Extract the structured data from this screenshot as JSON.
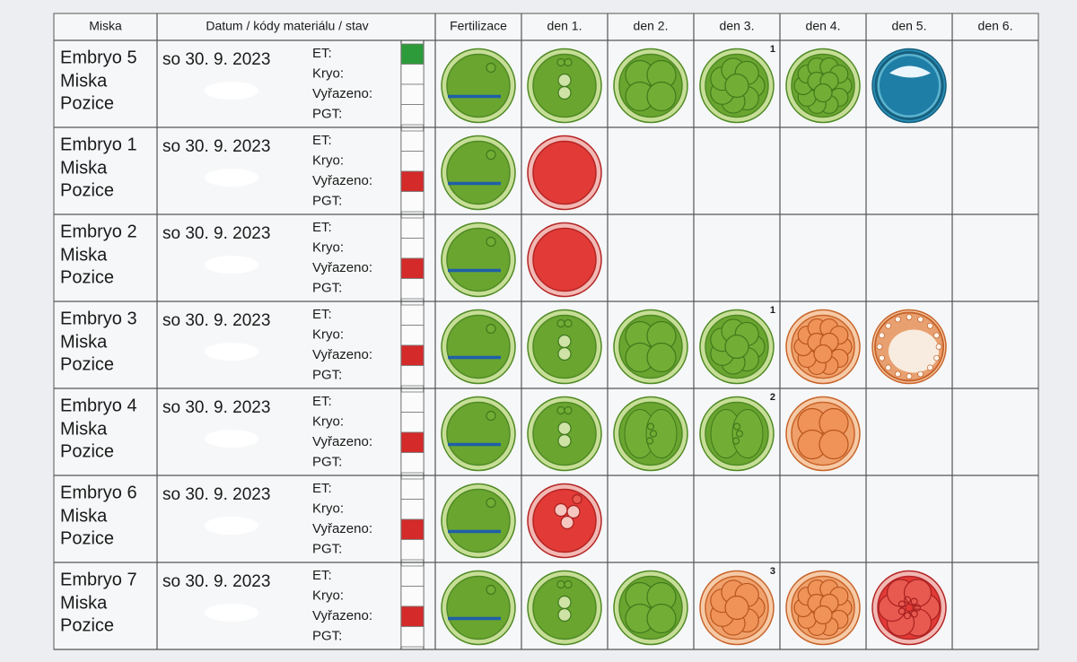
{
  "header": [
    "Miska",
    "Datum /  kódy materiálu / stav",
    "Fertilizace",
    "den 1.",
    "den 2.",
    "den 3.",
    "den 4.",
    "den 5.",
    "den 6."
  ],
  "rows": [
    {
      "embryo": "Embryo 5",
      "miska": "Miska",
      "pozice": "Pozice",
      "date": "so 30. 9. 2023",
      "labels": [
        "ET:",
        "Kryo:",
        "Vyřazeno:",
        "PGT:"
      ],
      "day_notes": [
        null,
        null,
        null,
        "1",
        null,
        null,
        null
      ]
    },
    {
      "embryo": "Embryo 1",
      "miska": "Miska",
      "pozice": "Pozice",
      "date": "so 30. 9. 2023",
      "labels": [
        "ET:",
        "Kryo:",
        "Vyřazeno:",
        "PGT:"
      ],
      "day_notes": [
        null,
        null,
        null,
        null,
        null,
        null,
        null
      ]
    },
    {
      "embryo": "Embryo 2",
      "miska": "Miska",
      "pozice": "Pozice",
      "date": "so 30. 9. 2023",
      "labels": [
        "ET:",
        "Kryo:",
        "Vyřazeno:",
        "PGT:"
      ],
      "day_notes": [
        null,
        null,
        null,
        null,
        null,
        null,
        null
      ]
    },
    {
      "embryo": "Embryo 3",
      "miska": "Miska",
      "pozice": "Pozice",
      "date": "so 30. 9. 2023",
      "labels": [
        "ET:",
        "Kryo:",
        "Vyřazeno:",
        "PGT:"
      ],
      "day_notes": [
        null,
        null,
        null,
        "1",
        null,
        null,
        null
      ]
    },
    {
      "embryo": "Embryo 4",
      "miska": "Miska",
      "pozice": "Pozice",
      "date": "so 30. 9. 2023",
      "labels": [
        "ET:",
        "Kryo:",
        "Vyřazeno:",
        "PGT:"
      ],
      "day_notes": [
        null,
        null,
        null,
        "2",
        null,
        null,
        null
      ]
    },
    {
      "embryo": "Embryo 6",
      "miska": "Miska",
      "pozice": "Pozice",
      "date": "so 30. 9. 2023",
      "labels": [
        "ET:",
        "Kryo:",
        "Vyřazeno:",
        "PGT:"
      ],
      "day_notes": [
        null,
        null,
        null,
        null,
        null,
        null,
        null
      ]
    },
    {
      "embryo": "Embryo 7",
      "miska": "Miska",
      "pozice": "Pozice",
      "date": "so 30. 9. 2023",
      "labels": [
        "ET:",
        "Kryo:",
        "Vyřazeno:",
        "PGT:"
      ],
      "day_notes": [
        null,
        null,
        null,
        "3",
        null,
        null,
        null
      ]
    }
  ]
}
